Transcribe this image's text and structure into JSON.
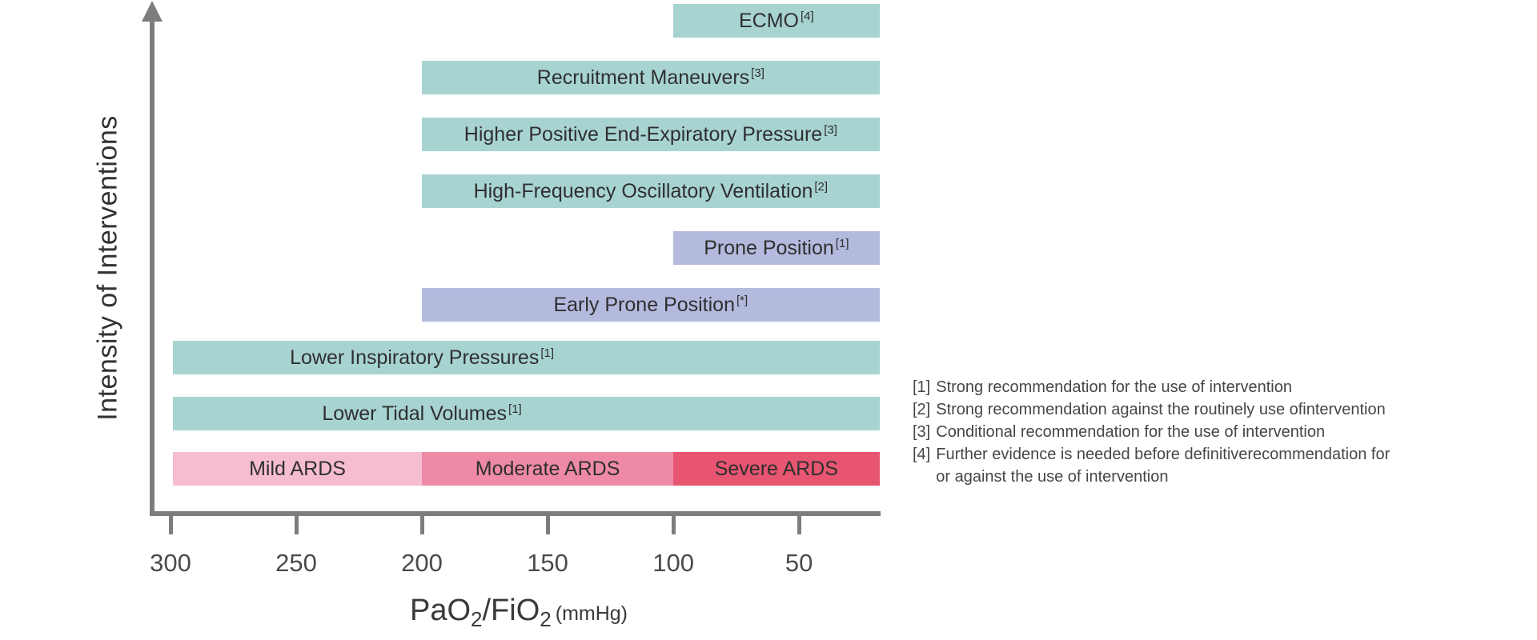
{
  "colors": {
    "teal": "#a7d3d1",
    "lavender": "#b4bade",
    "mild": "#f6bdd0",
    "moderate": "#ee8aa6",
    "severe": "#e75570",
    "axis": "#7d7d7d"
  },
  "chart_data": {
    "type": "bar",
    "orientation": "horizontal",
    "ylabel": "Intensity of Interventions",
    "xlabel_parts": {
      "base1": "PaO",
      "sub1": "2",
      "base2": "/FiO",
      "sub2": "2",
      "unit": "(mmHg)"
    },
    "xlabel_plain": "PaO2/FiO2 (mmHg)",
    "x_ticks": [
      300,
      250,
      200,
      150,
      100,
      50
    ],
    "x_axis_reversed": true,
    "x_range": [
      300,
      18
    ],
    "bars": [
      {
        "label": "ECMO",
        "ref": "[4]",
        "start": 100,
        "end": 18,
        "color": "teal"
      },
      {
        "label": "Recruitment Maneuvers",
        "ref": "[3]",
        "start": 200,
        "end": 18,
        "color": "teal"
      },
      {
        "label": "Higher Positive End-Expiratory Pressure",
        "ref": "[3]",
        "start": 200,
        "end": 18,
        "color": "teal"
      },
      {
        "label": "High-Frequency Oscillatory Ventilation",
        "ref": "[2]",
        "start": 200,
        "end": 18,
        "color": "teal"
      },
      {
        "label": "Prone Position",
        "ref": "[1]",
        "start": 100,
        "end": 18,
        "color": "lavender"
      },
      {
        "label": "Early Prone Position",
        "ref": "[*]",
        "start": 200,
        "end": 18,
        "color": "lavender"
      },
      {
        "label": "Lower Inspiratory Pressures",
        "ref": "[1]",
        "start": 300,
        "end": 18,
        "color": "teal",
        "label_center_at": 200
      },
      {
        "label": "Lower Tidal Volumes",
        "ref": "[1]",
        "start": 300,
        "end": 18,
        "color": "teal",
        "label_center_at": 200
      }
    ],
    "severity_bands": [
      {
        "label": "Mild ARDS",
        "start": 300,
        "end": 200,
        "color": "mild"
      },
      {
        "label": "Moderate ARDS",
        "start": 200,
        "end": 100,
        "color": "moderate"
      },
      {
        "label": "Severe ARDS",
        "start": 100,
        "end": 18,
        "color": "severe"
      }
    ]
  },
  "legend": {
    "items": [
      {
        "ref": "[1]",
        "lines": [
          "Strong recommendation for the use of intervention"
        ]
      },
      {
        "ref": "[2]",
        "lines": [
          "Strong recommendation against the routinely use ofintervention"
        ]
      },
      {
        "ref": "[3]",
        "lines": [
          "Conditional recommendation for the use of intervention"
        ]
      },
      {
        "ref": "[4]",
        "lines": [
          "Further evidence is needed before definitiverecommendation for",
          "or against the use of intervention"
        ]
      }
    ]
  }
}
